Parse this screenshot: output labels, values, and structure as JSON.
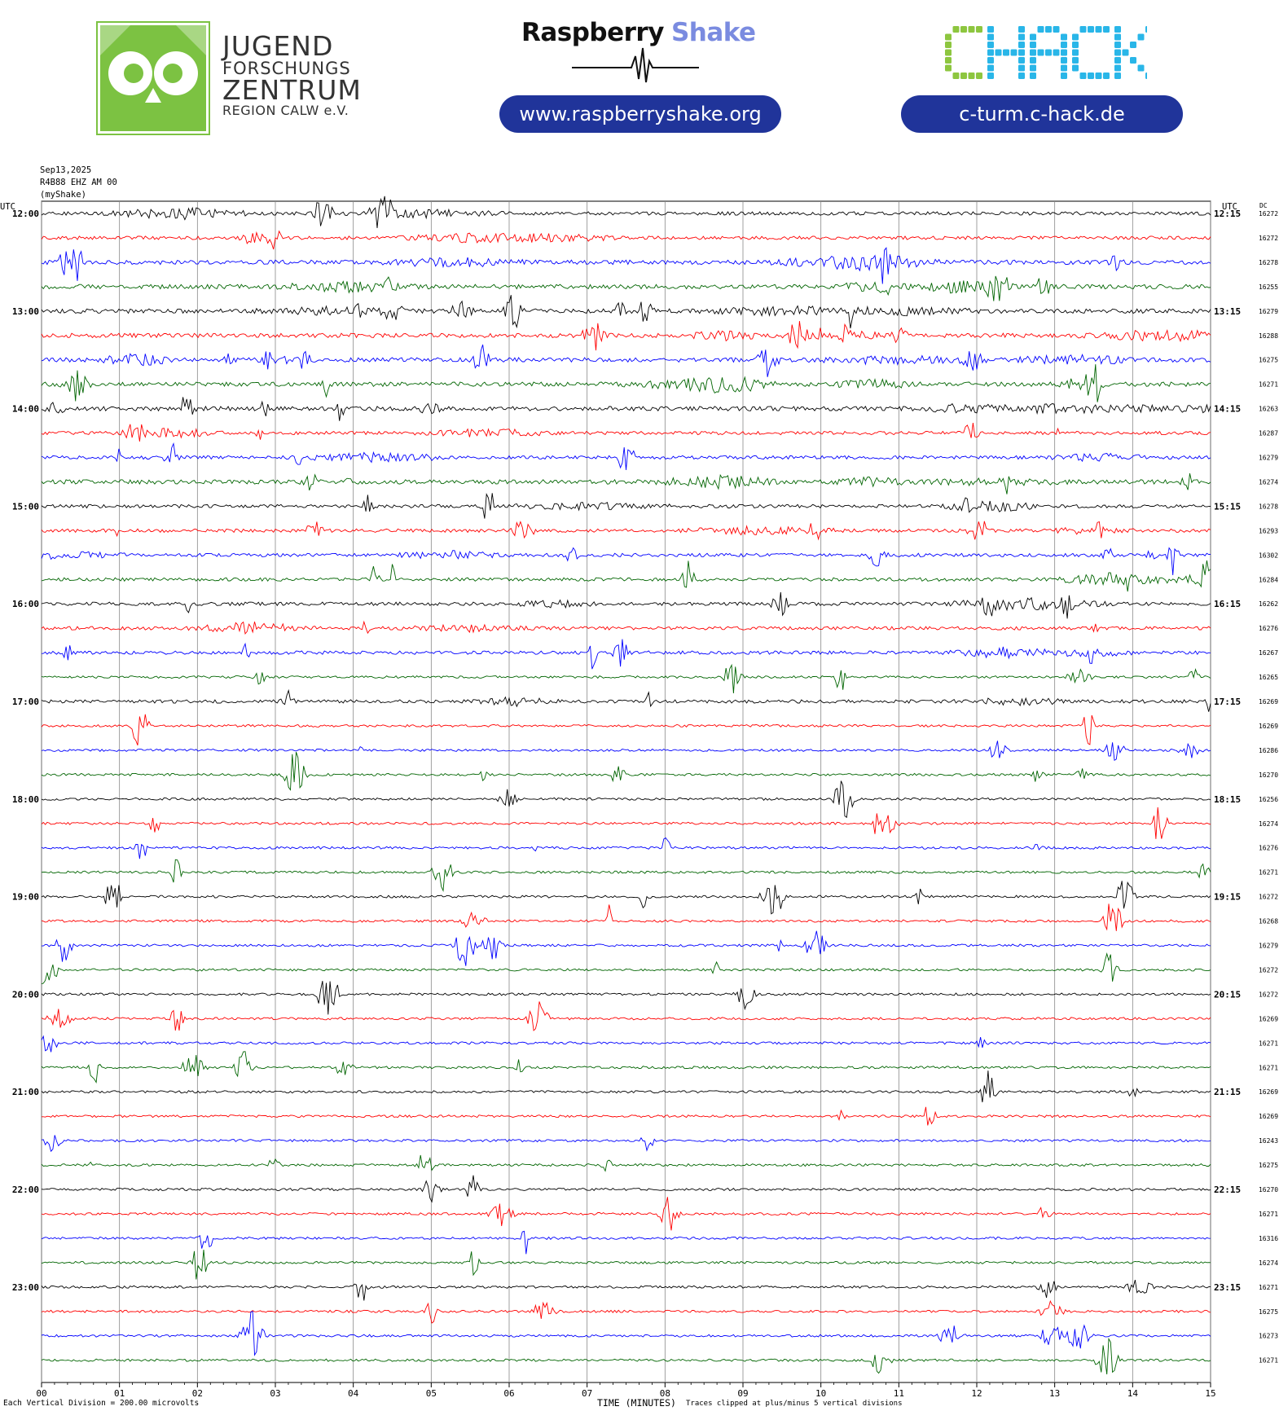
{
  "header": {
    "jfz": {
      "line1": "JUGEND",
      "line2": "FORSCHUNGS",
      "line3": "ZENTRUM",
      "line4": "REGION CALW e.V.",
      "color": "#7cc242"
    },
    "raspberry": {
      "word1": "Raspberry",
      "word2": "Shake",
      "url": "www.raspberryshake.org"
    },
    "chack": {
      "logo_text": "CHACK",
      "url": "c-turm.c-hack.de",
      "color_green": "#8dc63f",
      "color_cyan": "#29b6e8"
    },
    "pill_color": "#20349a"
  },
  "plot_meta": {
    "date": "Sep13,2025",
    "station": "R4B88 EHZ AM 00",
    "network": "(myShake)",
    "utc_left": "UTC",
    "utc_right": "UTC",
    "dc_header": "DC"
  },
  "footer": {
    "division": "Each Vertical Division =  200.00 microvolts",
    "axis_title": "TIME (MINUTES)",
    "clip_note": "Traces clipped at plus/minus 5 vertical divisions"
  },
  "chart_data": {
    "type": "line",
    "title": "Sep13,2025",
    "xlabel": "TIME (MINUTES)",
    "ylabel": "",
    "x_ticks": [
      "00",
      "01",
      "02",
      "03",
      "04",
      "05",
      "06",
      "07",
      "08",
      "09",
      "10",
      "11",
      "12",
      "13",
      "14",
      "15"
    ],
    "xlim": [
      0,
      15
    ],
    "grid": true,
    "trace_colors": [
      "#000000",
      "#ff0000",
      "#0000ff",
      "#006400"
    ],
    "left_labels": [
      "12:00",
      "13:00",
      "14:00",
      "15:00",
      "16:00",
      "17:00",
      "18:00",
      "19:00",
      "20:00",
      "21:00",
      "22:00",
      "23:00"
    ],
    "right_labels": [
      "12:15",
      "13:15",
      "14:15",
      "15:15",
      "16:15",
      "17:15",
      "18:15",
      "19:15",
      "20:15",
      "21:15",
      "22:15",
      "23:15"
    ],
    "dc_values": [
      "16272",
      "16272",
      "16278",
      "16255",
      "16279",
      "16288",
      "16275",
      "16271",
      "16263",
      "16287",
      "16279",
      "16274",
      "16278",
      "16293",
      "16302",
      "16284",
      "16262",
      "16276",
      "16267",
      "16265",
      "16269",
      "16269",
      "16286",
      "16270",
      "16256",
      "16274",
      "16276",
      "16271",
      "16272",
      "16268",
      "16279",
      "16272",
      "16272",
      "16269",
      "16271",
      "16271",
      "16269",
      "16269",
      "16243",
      "16275",
      "16270",
      "16271",
      "16316",
      "16274",
      "16271",
      "16275",
      "16273",
      "16271"
    ],
    "activity": [
      2,
      2,
      3,
      3,
      3,
      3,
      3,
      3,
      3,
      2,
      2,
      3,
      2,
      2,
      2,
      2,
      2,
      2,
      2,
      1,
      2,
      1,
      1,
      1,
      1,
      1,
      1,
      1,
      1,
      1,
      1,
      1,
      1,
      1,
      1,
      1,
      1,
      1,
      1,
      1,
      1,
      1,
      1,
      1,
      1,
      1,
      1,
      1
    ]
  }
}
